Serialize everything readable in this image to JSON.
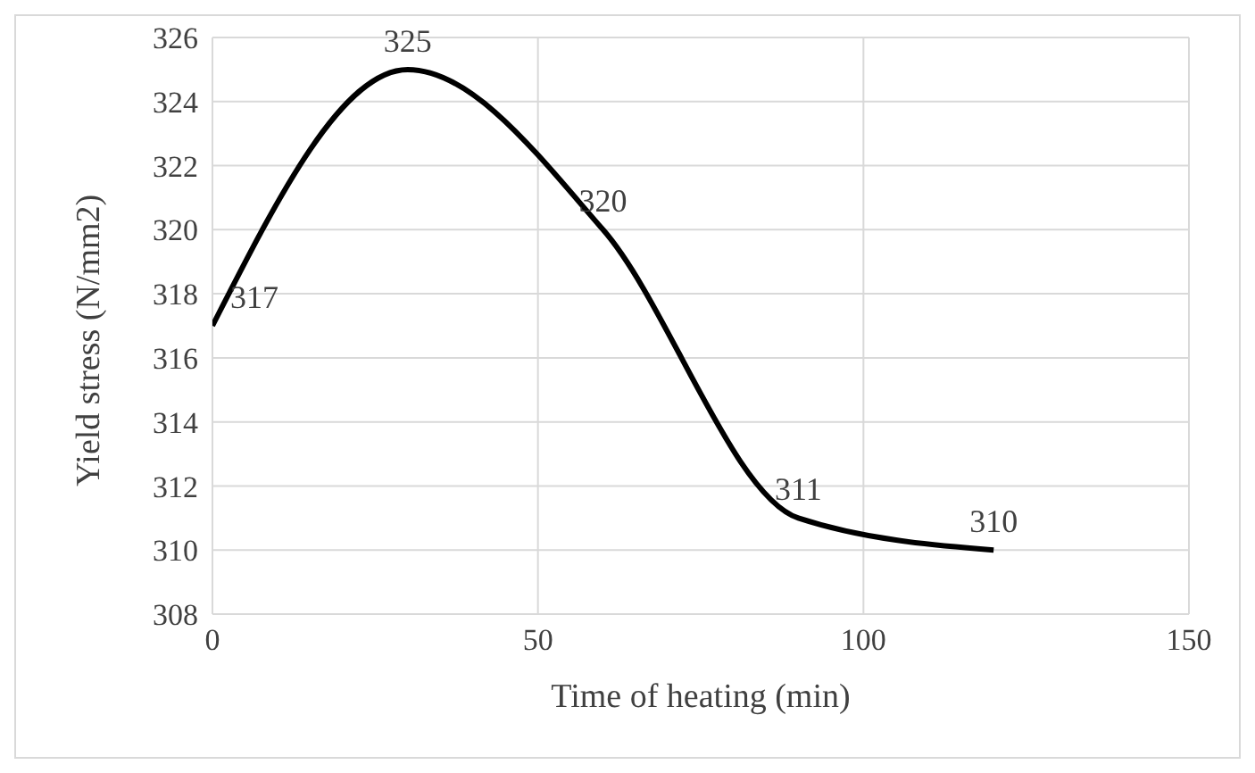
{
  "chart_data": {
    "type": "line",
    "xlabel": "Time of heating (min)",
    "ylabel": "Yield  stress (N/mm2)",
    "x": [
      0,
      30,
      60,
      90,
      120
    ],
    "series": [
      {
        "color": "#000000",
        "values": [
          317,
          325,
          320,
          311,
          310
        ]
      }
    ],
    "xlim": [
      0,
      150
    ],
    "xticks": [
      0,
      50,
      100,
      150
    ],
    "ylim": [
      308,
      326
    ],
    "yticks": [
      308,
      310,
      312,
      314,
      316,
      318,
      320,
      322,
      324,
      326
    ],
    "grid": true,
    "data_labels": true,
    "marker": "none",
    "line_style": "solid",
    "legend": false
  }
}
